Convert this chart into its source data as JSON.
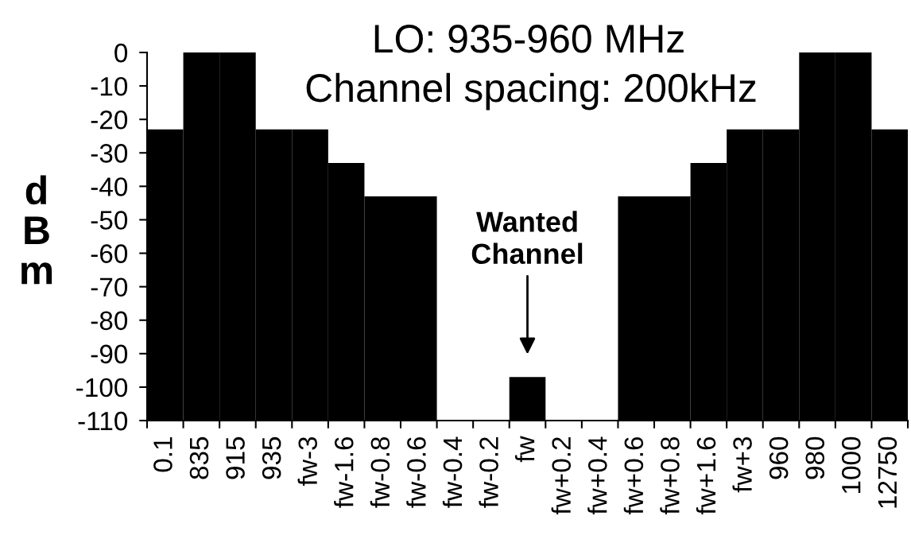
{
  "chart_data": {
    "type": "bar",
    "title": "LO: 935-960 MHz",
    "subtitle": "Channel spacing: 200kHz",
    "ylabel": "dBm",
    "categories": [
      "0.1",
      "835",
      "915",
      "935",
      "fw-3",
      "fw-1.6",
      "fw-0.8",
      "fw-0.6",
      "fw-0.4",
      "fw-0.2",
      "fw",
      "fw+0.2",
      "fw+0.4",
      "fw+0.6",
      "fw+0.8",
      "fw+1.6",
      "fw+3",
      "960",
      "980",
      "1000",
      "12750"
    ],
    "base": [
      -110,
      -110,
      -110,
      -110,
      -110,
      -110,
      -110,
      -110,
      null,
      null,
      -110,
      null,
      null,
      -110,
      -110,
      -110,
      -110,
      -110,
      -110,
      -110,
      -110
    ],
    "values": [
      87,
      110,
      110,
      87,
      87,
      77,
      67,
      67,
      null,
      null,
      13,
      null,
      null,
      67,
      67,
      77,
      87,
      87,
      110,
      110,
      87
    ],
    "color": "#000000",
    "ylim": [
      -110,
      0
    ],
    "yticks": [
      0,
      -10,
      -20,
      -30,
      -40,
      -50,
      -60,
      -70,
      -80,
      -90,
      -100,
      -110
    ],
    "annotations": [
      "Wanted\nChannel"
    ]
  }
}
